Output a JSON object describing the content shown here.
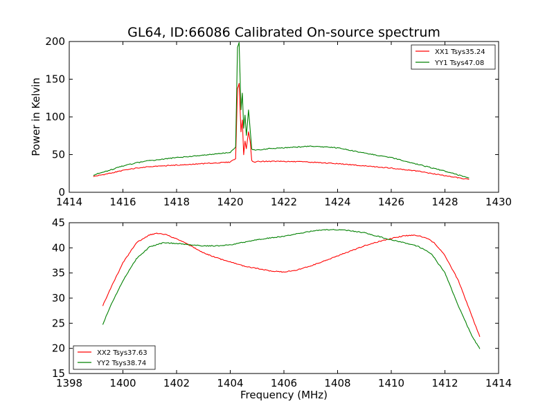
{
  "chart_data": [
    {
      "type": "line",
      "title": "GL64, ID:66086 Calibrated On-source spectrum",
      "xlabel": "",
      "ylabel": "Power in Kelvin",
      "xlim": [
        1414,
        1430
      ],
      "ylim": [
        0,
        200
      ],
      "xticks": [
        "1414",
        "1416",
        "1418",
        "1420",
        "1422",
        "1424",
        "1426",
        "1428",
        "1430"
      ],
      "yticks": [
        "0",
        "50",
        "100",
        "150",
        "200"
      ],
      "legend_position": "top-right",
      "series": [
        {
          "name": "XX1 Tsys35.24",
          "color": "#ff0000",
          "x": [
            1414.9,
            1415.5,
            1416.0,
            1416.5,
            1417.0,
            1418.0,
            1419.0,
            1420.0,
            1420.2,
            1420.27,
            1420.33,
            1420.4,
            1420.45,
            1420.5,
            1420.55,
            1420.6,
            1420.68,
            1420.75,
            1420.8,
            1420.9,
            1421.0,
            1421.5,
            1422.0,
            1423.0,
            1424.0,
            1425.0,
            1426.0,
            1427.0,
            1428.0,
            1428.9
          ],
          "y": [
            21,
            25,
            29,
            32,
            34,
            36,
            38,
            40,
            45,
            138,
            144,
            80,
            96,
            50,
            68,
            58,
            80,
            65,
            42,
            40,
            41,
            41,
            41,
            40,
            38,
            35,
            32,
            28,
            22,
            17
          ]
        },
        {
          "name": "YY1 Tsys47.08",
          "color": "#008000",
          "x": [
            1414.9,
            1415.5,
            1416.0,
            1416.5,
            1417.0,
            1418.0,
            1419.0,
            1420.0,
            1420.2,
            1420.27,
            1420.33,
            1420.4,
            1420.45,
            1420.5,
            1420.55,
            1420.6,
            1420.68,
            1420.75,
            1420.8,
            1420.9,
            1421.0,
            1421.5,
            1422.0,
            1423.0,
            1424.0,
            1425.0,
            1426.0,
            1427.0,
            1428.0,
            1428.9
          ],
          "y": [
            23,
            29,
            35,
            39,
            42,
            46,
            49,
            53,
            60,
            192,
            199,
            110,
            132,
            85,
            102,
            75,
            109,
            80,
            57,
            56,
            56,
            58,
            59,
            61,
            59,
            52,
            46,
            37,
            28,
            19
          ]
        }
      ]
    },
    {
      "type": "line",
      "title": "",
      "xlabel": "Frequency (MHz)",
      "ylabel": "",
      "xlim": [
        1398,
        1414
      ],
      "ylim": [
        15,
        45
      ],
      "xticks": [
        "1398",
        "1400",
        "1402",
        "1404",
        "1406",
        "1408",
        "1410",
        "1412",
        "1414"
      ],
      "yticks": [
        "15",
        "20",
        "25",
        "30",
        "35",
        "40",
        "45"
      ],
      "legend_position": "bottom-left",
      "series": [
        {
          "name": "XX2 Tsys37.63",
          "color": "#ff0000",
          "x": [
            1399.25,
            1399.5,
            1400.0,
            1400.5,
            1401.0,
            1401.3,
            1401.6,
            1402.0,
            1402.5,
            1403.0,
            1403.5,
            1404.0,
            1404.5,
            1405.0,
            1405.5,
            1406.0,
            1406.5,
            1407.0,
            1407.5,
            1408.0,
            1408.5,
            1409.0,
            1409.5,
            1410.0,
            1410.5,
            1410.8,
            1411.0,
            1411.3,
            1411.6,
            1412.0,
            1412.5,
            1413.0,
            1413.3
          ],
          "y": [
            28.5,
            31.5,
            37.0,
            41.0,
            42.6,
            42.9,
            42.6,
            41.8,
            40.5,
            39.0,
            38.0,
            37.2,
            36.4,
            35.9,
            35.4,
            35.2,
            35.6,
            36.4,
            37.4,
            38.4,
            39.4,
            40.4,
            41.2,
            41.9,
            42.4,
            42.5,
            42.4,
            42.0,
            41.0,
            38.5,
            33.5,
            26.5,
            22.3
          ]
        },
        {
          "name": "YY2 Tsys38.74",
          "color": "#008000",
          "x": [
            1399.25,
            1399.5,
            1400.0,
            1400.5,
            1401.0,
            1401.5,
            1402.0,
            1402.5,
            1403.0,
            1403.5,
            1404.0,
            1404.5,
            1405.0,
            1405.5,
            1406.0,
            1406.5,
            1407.0,
            1407.5,
            1408.0,
            1408.5,
            1409.0,
            1409.5,
            1410.0,
            1410.5,
            1411.0,
            1411.5,
            1412.0,
            1412.5,
            1413.0,
            1413.3
          ],
          "y": [
            24.8,
            28.0,
            33.5,
            37.8,
            40.2,
            41.0,
            40.9,
            40.6,
            40.4,
            40.4,
            40.6,
            41.1,
            41.6,
            42.0,
            42.3,
            42.8,
            43.3,
            43.6,
            43.6,
            43.4,
            43.0,
            42.3,
            41.6,
            41.0,
            40.3,
            38.8,
            35.0,
            28.5,
            22.5,
            19.9
          ]
        }
      ]
    }
  ]
}
